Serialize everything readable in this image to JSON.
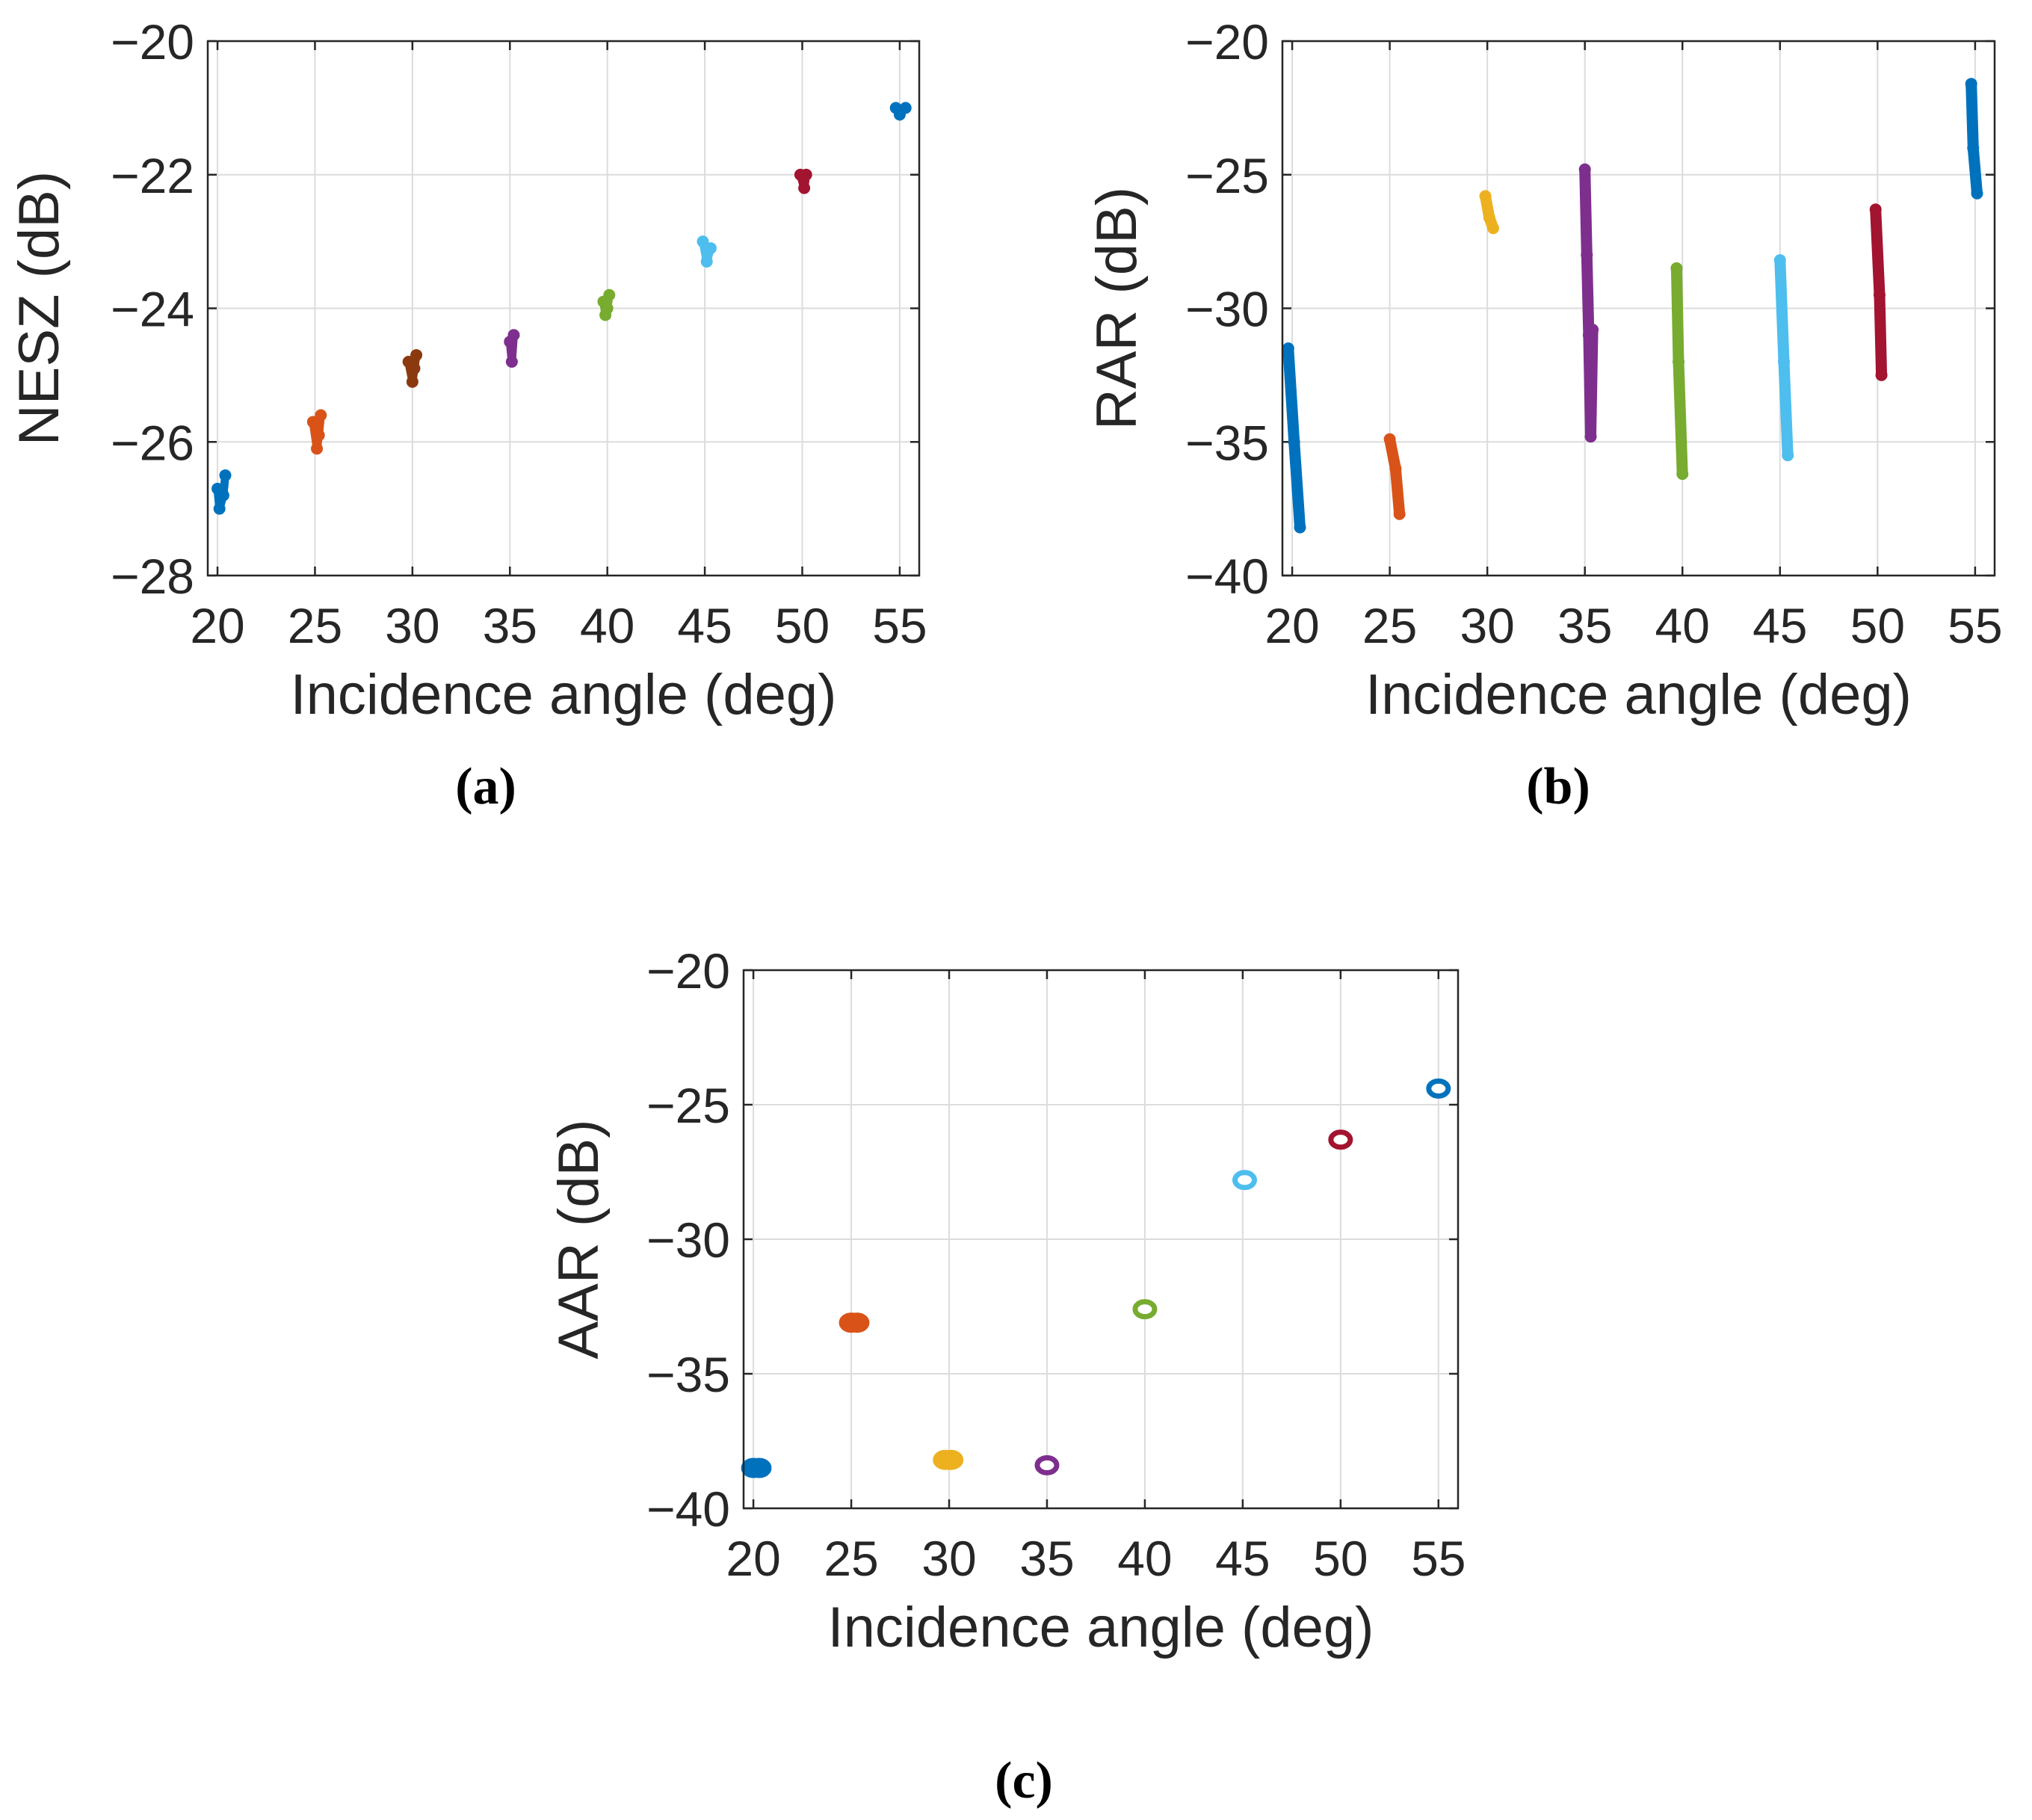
{
  "chart_data": [
    {
      "type": "scatter",
      "panel": "a",
      "caption": "(a)",
      "xlabel": "Incidence angle (deg)",
      "ylabel": "NESZ (dB)",
      "xlim": [
        19.5,
        56
      ],
      "ylim": [
        -28,
        -20
      ],
      "xticks": [
        20,
        25,
        30,
        35,
        40,
        45,
        50,
        55
      ],
      "yticks": [
        -28,
        -26,
        -24,
        -22,
        -20
      ],
      "ytick_labels": [
        "−28",
        "−26",
        "−24",
        "−22",
        "−20"
      ],
      "grid": true,
      "series": [
        {
          "name": "20 deg",
          "color": "#0072BD",
          "x": [
            20.0,
            20.1,
            20.3,
            20.4
          ],
          "y": [
            -26.7,
            -27.0,
            -26.8,
            -26.5
          ]
        },
        {
          "name": "25 deg",
          "color": "#D95319",
          "x": [
            24.9,
            25.1,
            25.2,
            25.3
          ],
          "y": [
            -25.7,
            -26.1,
            -25.9,
            -25.6
          ]
        },
        {
          "name": "30 deg",
          "color": "#8B3A10",
          "x": [
            29.8,
            30.0,
            30.1,
            30.2
          ],
          "y": [
            -24.8,
            -25.1,
            -24.9,
            -24.7
          ]
        },
        {
          "name": "35 deg",
          "color": "#7E2F8E",
          "x": [
            35.0,
            35.1,
            35.2
          ],
          "y": [
            -24.5,
            -24.8,
            -24.4
          ]
        },
        {
          "name": "40 deg",
          "color": "#77AC30",
          "x": [
            39.8,
            39.9,
            40.0,
            40.1
          ],
          "y": [
            -23.9,
            -24.1,
            -24.0,
            -23.8
          ]
        },
        {
          "name": "45 deg",
          "color": "#4DBEEE",
          "x": [
            44.9,
            45.1,
            45.3
          ],
          "y": [
            -23.0,
            -23.3,
            -23.1
          ]
        },
        {
          "name": "50 deg",
          "color": "#A2142F",
          "x": [
            49.9,
            50.1,
            50.2
          ],
          "y": [
            -22.0,
            -22.2,
            -22.0
          ]
        },
        {
          "name": "55 deg",
          "color": "#0072BD",
          "x": [
            54.8,
            55.0,
            55.3
          ],
          "y": [
            -21.0,
            -21.1,
            -21.0
          ]
        }
      ]
    },
    {
      "type": "scatter",
      "panel": "b",
      "caption": "(b)",
      "xlabel": "Incidence angle (deg)",
      "ylabel": "RAR (dB)",
      "xlim": [
        19.5,
        56
      ],
      "ylim": [
        -40,
        -20
      ],
      "xticks": [
        20,
        25,
        30,
        35,
        40,
        45,
        50,
        55
      ],
      "yticks": [
        -40,
        -35,
        -30,
        -25,
        -20
      ],
      "ytick_labels": [
        "−40",
        "−35",
        "−30",
        "−25",
        "−20"
      ],
      "grid": true,
      "series": [
        {
          "name": "20 deg",
          "color": "#0072BD",
          "x": [
            19.8,
            20.1,
            20.4
          ],
          "y": [
            -31.5,
            -35.0,
            -38.2
          ]
        },
        {
          "name": "25 deg",
          "color": "#D95319",
          "x": [
            25.0,
            25.3,
            25.5
          ],
          "y": [
            -34.9,
            -36.0,
            -37.7
          ]
        },
        {
          "name": "30 deg",
          "color": "#EDB120",
          "x": [
            29.9,
            30.1,
            30.3
          ],
          "y": [
            -25.8,
            -26.6,
            -27.0
          ]
        },
        {
          "name": "35 deg",
          "color": "#7E2F8E",
          "x": [
            35.0,
            35.1,
            35.2,
            35.3,
            35.4
          ],
          "y": [
            -24.8,
            -28.0,
            -31.0,
            -34.8,
            -30.8
          ]
        },
        {
          "name": "40 deg",
          "color": "#77AC30",
          "x": [
            39.7,
            39.8,
            40.0
          ],
          "y": [
            -28.5,
            -32.0,
            -36.2
          ]
        },
        {
          "name": "45 deg",
          "color": "#4DBEEE",
          "x": [
            45.0,
            45.2,
            45.4
          ],
          "y": [
            -28.2,
            -32.0,
            -35.5
          ]
        },
        {
          "name": "50 deg",
          "color": "#A2142F",
          "x": [
            49.9,
            50.1,
            50.2
          ],
          "y": [
            -26.3,
            -29.5,
            -32.5
          ]
        },
        {
          "name": "55 deg",
          "color": "#0072BD",
          "x": [
            54.8,
            54.9,
            55.1
          ],
          "y": [
            -21.6,
            -24.0,
            -25.7
          ]
        }
      ]
    },
    {
      "type": "scatter",
      "panel": "c",
      "caption": "(c)",
      "xlabel": "Incidence angle (deg)",
      "ylabel": "AAR (dB)",
      "xlim": [
        19.5,
        56
      ],
      "ylim": [
        -40,
        -20
      ],
      "xticks": [
        20,
        25,
        30,
        35,
        40,
        45,
        50,
        55
      ],
      "yticks": [
        -40,
        -35,
        -30,
        -25,
        -20
      ],
      "ytick_labels": [
        "−40",
        "−35",
        "−30",
        "−25",
        "−20"
      ],
      "grid": true,
      "series": [
        {
          "name": "20 deg",
          "color": "#0072BD",
          "x": [
            20.0,
            20.3
          ],
          "y": [
            -38.5,
            -38.5
          ]
        },
        {
          "name": "25 deg",
          "color": "#D95319",
          "x": [
            25.0,
            25.3
          ],
          "y": [
            -33.1,
            -33.1
          ]
        },
        {
          "name": "30 deg",
          "color": "#EDB120",
          "x": [
            29.8,
            30.1
          ],
          "y": [
            -38.2,
            -38.2
          ]
        },
        {
          "name": "35 deg",
          "color": "#7E2F8E",
          "x": [
            35.0
          ],
          "y": [
            -38.4
          ]
        },
        {
          "name": "40 deg",
          "color": "#77AC30",
          "x": [
            40.0
          ],
          "y": [
            -32.6
          ]
        },
        {
          "name": "45 deg",
          "color": "#4DBEEE",
          "x": [
            45.1
          ],
          "y": [
            -27.8
          ]
        },
        {
          "name": "50 deg",
          "color": "#A2142F",
          "x": [
            50.0
          ],
          "y": [
            -26.3
          ]
        },
        {
          "name": "55 deg",
          "color": "#0072BD",
          "x": [
            55.0
          ],
          "y": [
            -24.4
          ]
        }
      ]
    }
  ]
}
